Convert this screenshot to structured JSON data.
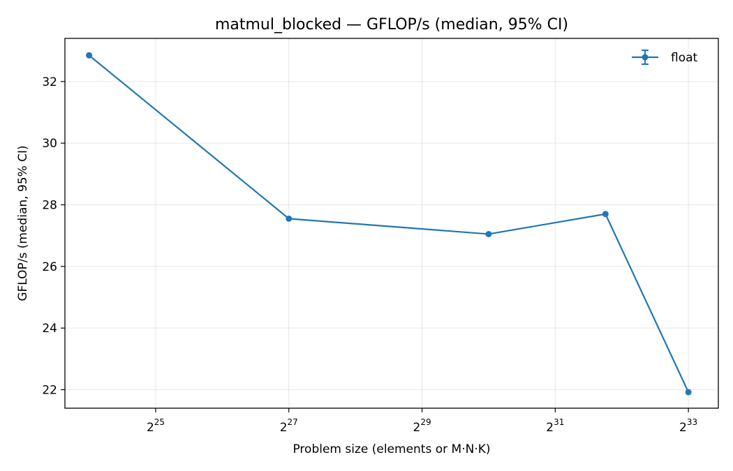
{
  "chart_data": {
    "type": "line",
    "title": "matmul_blocked — GFLOP/s (median, 95% CI)",
    "xlabel": "Problem size (elements or M·N·K)",
    "ylabel": "GFLOP/s (median, 95% CI)",
    "x_scale": "log2",
    "xlim": [
      13045332,
      11732423393
    ],
    "ylim": [
      21.4,
      33.4
    ],
    "x_ticks": [
      33554432,
      134217728,
      536870912,
      2147483648,
      8589934592
    ],
    "x_tick_labels": [
      {
        "base": "2",
        "exp": "25"
      },
      {
        "base": "2",
        "exp": "27"
      },
      {
        "base": "2",
        "exp": "29"
      },
      {
        "base": "2",
        "exp": "31"
      },
      {
        "base": "2",
        "exp": "33"
      }
    ],
    "y_ticks": [
      22,
      24,
      26,
      28,
      30,
      32
    ],
    "y_tick_labels": [
      "22",
      "24",
      "26",
      "28",
      "30",
      "32"
    ],
    "grid": true,
    "legend_position": "top-right",
    "series": [
      {
        "name": "float",
        "color": "#1f77b4",
        "x": [
          16777216,
          134217728,
          1073741824,
          3623878656,
          8589934592
        ],
        "y": [
          32.85,
          27.55,
          27.05,
          27.7,
          21.92
        ]
      }
    ]
  }
}
